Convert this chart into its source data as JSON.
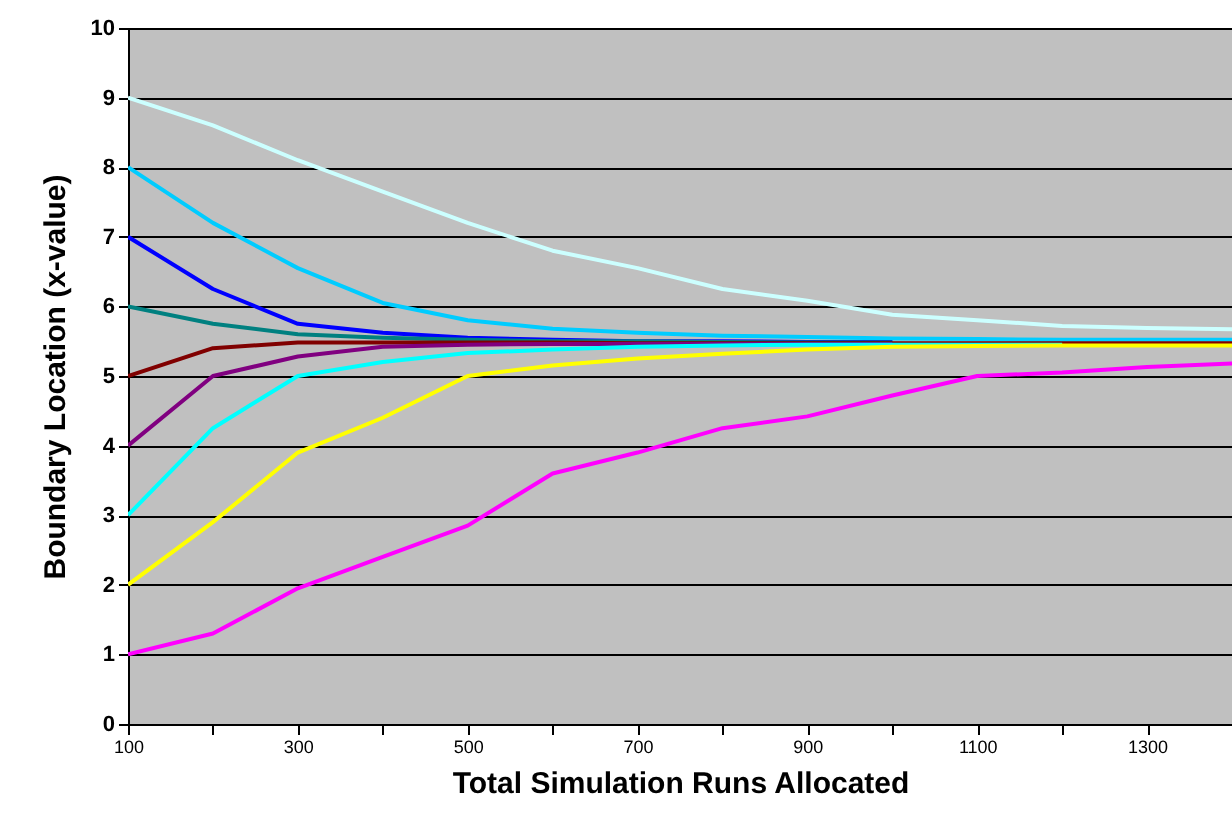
{
  "chart_data": {
    "type": "line",
    "xlabel": "Total Simulation Runs Allocated",
    "ylabel": "Boundary Location (x-value)",
    "x": [
      100,
      200,
      300,
      400,
      500,
      600,
      700,
      800,
      900,
      1000,
      1100,
      1200,
      1300,
      1400
    ],
    "xlim": [
      100,
      1400
    ],
    "xticks": [
      100,
      {
        "value": 200,
        "label": null
      },
      300,
      {
        "value": 400,
        "label": null
      },
      500,
      {
        "value": 600,
        "label": null
      },
      700,
      {
        "value": 800,
        "label": null
      },
      900,
      {
        "value": 1000,
        "label": null
      },
      1100,
      {
        "value": 1200,
        "label": null
      },
      1300
    ],
    "ylim": [
      0,
      10
    ],
    "yticks": [
      0,
      1,
      2,
      3,
      4,
      5,
      6,
      7,
      8,
      9,
      10
    ],
    "grid": "y",
    "legend": false,
    "marker": "none",
    "line_style": "solid",
    "series": [
      {
        "color": "#ccffff",
        "values": [
          9,
          8.6,
          8.1,
          7.65,
          7.2,
          6.8,
          6.55,
          6.25,
          6.08,
          5.88,
          5.8,
          5.72,
          5.69,
          5.67
        ]
      },
      {
        "color": "#00ccff",
        "values": [
          8,
          7.2,
          6.55,
          6.05,
          5.8,
          5.68,
          5.62,
          5.58,
          5.56,
          5.54,
          5.53,
          5.52,
          5.52,
          5.52
        ]
      },
      {
        "color": "#0000ff",
        "values": [
          7,
          6.25,
          5.75,
          5.62,
          5.55,
          5.52,
          5.5,
          5.5,
          5.49,
          5.49,
          null,
          null,
          null,
          null
        ]
      },
      {
        "color": "#008080",
        "values": [
          6,
          5.75,
          5.6,
          5.55,
          5.52,
          5.5,
          5.5,
          5.49,
          5.48,
          5.48,
          null,
          null,
          null,
          null
        ]
      },
      {
        "color": "#800000",
        "values": [
          5,
          5.4,
          5.48,
          5.48,
          5.48,
          5.48,
          5.47,
          5.47,
          5.47,
          5.47,
          5.47,
          5.47,
          5.47,
          5.47
        ]
      },
      {
        "color": "#800080",
        "values": [
          4,
          5,
          5.28,
          5.42,
          5.45,
          5.46,
          5.46,
          5.46,
          5.46,
          5.46,
          null,
          null,
          null,
          null
        ]
      },
      {
        "color": "#00ffff",
        "values": [
          3,
          4.25,
          5,
          5.2,
          5.33,
          5.38,
          5.42,
          5.44,
          5.45,
          5.45,
          5.45,
          5.45,
          null,
          null
        ]
      },
      {
        "color": "#ffff00",
        "values": [
          2,
          2.9,
          3.9,
          4.4,
          5,
          5.15,
          5.25,
          5.32,
          5.38,
          5.42,
          5.43,
          5.44,
          5.44,
          5.44
        ]
      },
      {
        "color": "#ff00ff",
        "values": [
          1,
          1.3,
          1.95,
          2.4,
          2.85,
          3.6,
          3.9,
          4.25,
          4.42,
          4.72,
          5.0,
          5.05,
          5.13,
          5.18
        ]
      }
    ]
  }
}
